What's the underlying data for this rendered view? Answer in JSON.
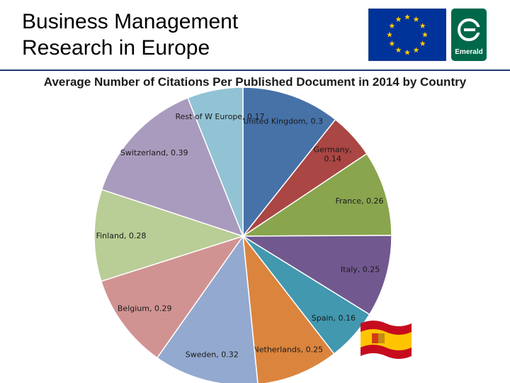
{
  "header": {
    "title_line1": "Business Management",
    "title_line2": "Research in Europe",
    "logo_text": "Emerald"
  },
  "colors": {
    "header_rule": "#1f3b73",
    "eu_blue": "#003399",
    "eu_star": "#ffcc00",
    "emerald_green": "#00684a"
  },
  "chart_data": {
    "type": "pie",
    "title": "Average Number of Citations Per Published Document in 2014 by Country",
    "slices": [
      {
        "label": "United Kingdom",
        "value": 0.3,
        "value_text": "0.3",
        "color": "#4672a8"
      },
      {
        "label": "Germany",
        "value": 0.14,
        "value_text": "0.14",
        "color": "#aa4643",
        "two_line": true
      },
      {
        "label": "France",
        "value": 0.26,
        "value_text": "0.26",
        "color": "#89a54e"
      },
      {
        "label": "Italy",
        "value": 0.25,
        "value_text": "0.25",
        "color": "#71588f"
      },
      {
        "label": "Spain",
        "value": 0.16,
        "value_text": "0.16",
        "color": "#4198af"
      },
      {
        "label": "Netherlands",
        "value": 0.25,
        "value_text": "0.25",
        "color": "#db843d"
      },
      {
        "label": "Sweden",
        "value": 0.32,
        "value_text": "0.32",
        "color": "#93a9cf"
      },
      {
        "label": "Belgium",
        "value": 0.29,
        "value_text": "0.29",
        "color": "#d19392"
      },
      {
        "label": "Finland",
        "value": 0.28,
        "value_text": "0.28",
        "color": "#b9cd96"
      },
      {
        "label": "Switzerland",
        "value": 0.39,
        "value_text": "0.39",
        "color": "#a99bbd"
      },
      {
        "label": "Rest of W Europe",
        "value": 0.17,
        "value_text": "0.17",
        "color": "#91c3d5"
      }
    ],
    "legend": "none",
    "labels": "on slices"
  },
  "decorations": {
    "flag_colors": {
      "red": "#c60b1e",
      "yellow": "#ffc400"
    }
  }
}
